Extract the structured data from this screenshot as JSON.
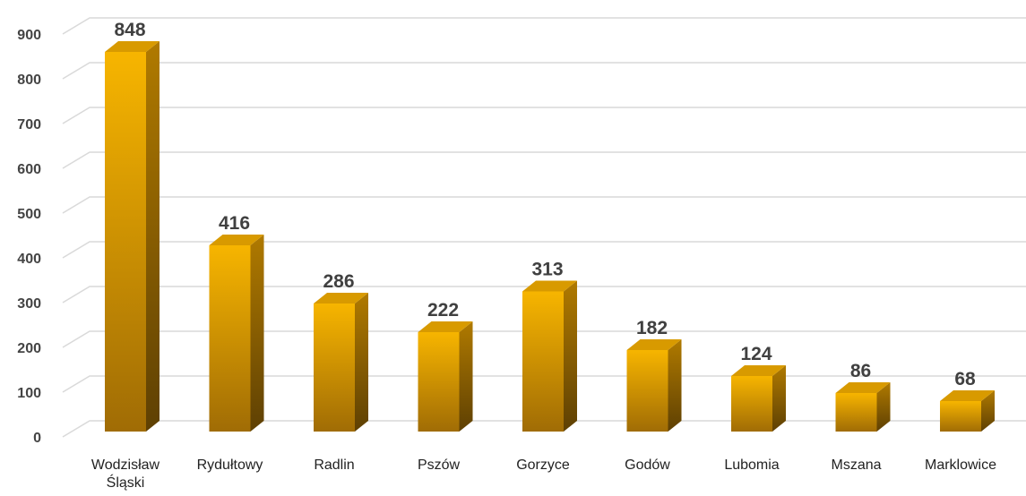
{
  "chart_data": {
    "type": "bar3d",
    "categories": [
      "Wodzisław Śląski",
      "Rydułtowy",
      "Radlin",
      "Pszów",
      "Gorzyce",
      "Godów",
      "Lubomia",
      "Mszana",
      "Marklowice"
    ],
    "values": [
      848,
      416,
      286,
      222,
      313,
      182,
      124,
      86,
      68
    ],
    "color": "#f5b000",
    "ylim": [
      0,
      900
    ],
    "yticks": [
      0,
      100,
      200,
      300,
      400,
      500,
      600,
      700,
      800,
      900
    ],
    "grid": true
  }
}
